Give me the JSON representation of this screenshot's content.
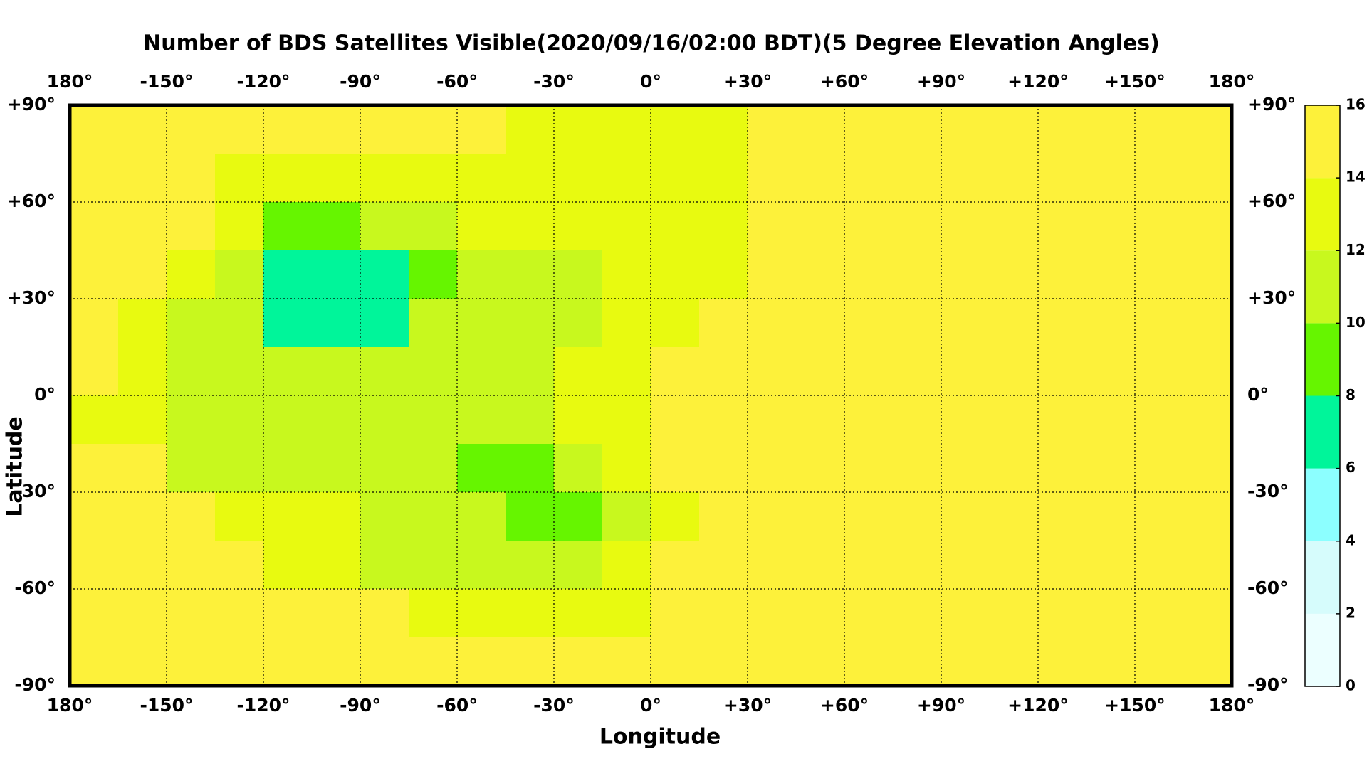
{
  "chart_data": {
    "type": "heatmap",
    "title": "Number of BDS Satellites Visible(2020/09/16/02:00 BDT)(5 Degree Elevation Angles)",
    "xlabel": "Longitude",
    "ylabel": "Latitude",
    "xlim": [
      -180,
      180
    ],
    "ylim": [
      -90,
      90
    ],
    "xticks": [
      {
        "value": -180,
        "label": "180°"
      },
      {
        "value": -150,
        "label": "-150°"
      },
      {
        "value": -120,
        "label": "-120°"
      },
      {
        "value": -90,
        "label": "-90°"
      },
      {
        "value": -60,
        "label": "-60°"
      },
      {
        "value": -30,
        "label": "-30°"
      },
      {
        "value": 0,
        "label": "0°"
      },
      {
        "value": 30,
        "label": "+30°"
      },
      {
        "value": 60,
        "label": "+60°"
      },
      {
        "value": 90,
        "label": "+90°"
      },
      {
        "value": 120,
        "label": "+120°"
      },
      {
        "value": 150,
        "label": "+150°"
      },
      {
        "value": 180,
        "label": "180°"
      }
    ],
    "yticks": [
      {
        "value": 90,
        "label": "+90°"
      },
      {
        "value": 60,
        "label": "+60°"
      },
      {
        "value": 30,
        "label": "+30°"
      },
      {
        "value": 0,
        "label": "0°"
      },
      {
        "value": -30,
        "label": "-30°"
      },
      {
        "value": -60,
        "label": "-60°"
      },
      {
        "value": -90,
        "label": "-90°"
      }
    ],
    "grid": true,
    "levels": [
      0,
      2,
      4,
      6,
      8,
      10,
      12,
      14,
      16
    ],
    "colors": [
      "#ecffff",
      "#d6fcfc",
      "#8cffff",
      "#00f59a",
      "#66f500",
      "#c8f81e",
      "#e8fa10",
      "#fdf13a"
    ],
    "values": [
      [
        15,
        15,
        15,
        15,
        15,
        15,
        15,
        15,
        15,
        13,
        13,
        13,
        13,
        13,
        15,
        15,
        15,
        15,
        15,
        15,
        15,
        15,
        15,
        15
      ],
      [
        15,
        15,
        15,
        13,
        13,
        13,
        13,
        13,
        13,
        13,
        13,
        13,
        13,
        13,
        15,
        15,
        15,
        15,
        15,
        15,
        15,
        15,
        15,
        15
      ],
      [
        15,
        15,
        15,
        13,
        9,
        9,
        11,
        11,
        13,
        13,
        13,
        13,
        13,
        13,
        15,
        15,
        15,
        15,
        15,
        15,
        15,
        15,
        15,
        15
      ],
      [
        15,
        15,
        13,
        11,
        7,
        7,
        7,
        9,
        11,
        11,
        11,
        13,
        13,
        13,
        15,
        15,
        15,
        15,
        15,
        15,
        15,
        15,
        15,
        15
      ],
      [
        15,
        13,
        11,
        11,
        7,
        7,
        7,
        11,
        11,
        11,
        11,
        13,
        13,
        15,
        15,
        15,
        15,
        15,
        15,
        15,
        15,
        15,
        15,
        15
      ],
      [
        15,
        13,
        11,
        11,
        11,
        11,
        11,
        11,
        11,
        11,
        13,
        13,
        15,
        15,
        15,
        15,
        15,
        15,
        15,
        15,
        15,
        15,
        15,
        15
      ],
      [
        13,
        13,
        11,
        11,
        11,
        11,
        11,
        11,
        11,
        11,
        13,
        13,
        15,
        15,
        15,
        15,
        15,
        15,
        15,
        15,
        15,
        15,
        15,
        15
      ],
      [
        15,
        15,
        11,
        11,
        11,
        11,
        11,
        11,
        9,
        9,
        11,
        13,
        15,
        15,
        15,
        15,
        15,
        15,
        15,
        15,
        15,
        15,
        15,
        15
      ],
      [
        15,
        15,
        15,
        13,
        13,
        13,
        11,
        11,
        11,
        9,
        9,
        11,
        13,
        15,
        15,
        15,
        15,
        15,
        15,
        15,
        15,
        15,
        15,
        15
      ],
      [
        15,
        15,
        15,
        15,
        13,
        13,
        11,
        11,
        11,
        11,
        11,
        13,
        15,
        15,
        15,
        15,
        15,
        15,
        15,
        15,
        15,
        15,
        15,
        15
      ],
      [
        15,
        15,
        15,
        15,
        15,
        15,
        15,
        13,
        13,
        13,
        13,
        13,
        15,
        15,
        15,
        15,
        15,
        15,
        15,
        15,
        15,
        15,
        15,
        15
      ],
      [
        15,
        15,
        15,
        15,
        15,
        15,
        15,
        15,
        15,
        15,
        15,
        15,
        15,
        15,
        15,
        15,
        15,
        15,
        15,
        15,
        15,
        15,
        15,
        15
      ]
    ]
  }
}
